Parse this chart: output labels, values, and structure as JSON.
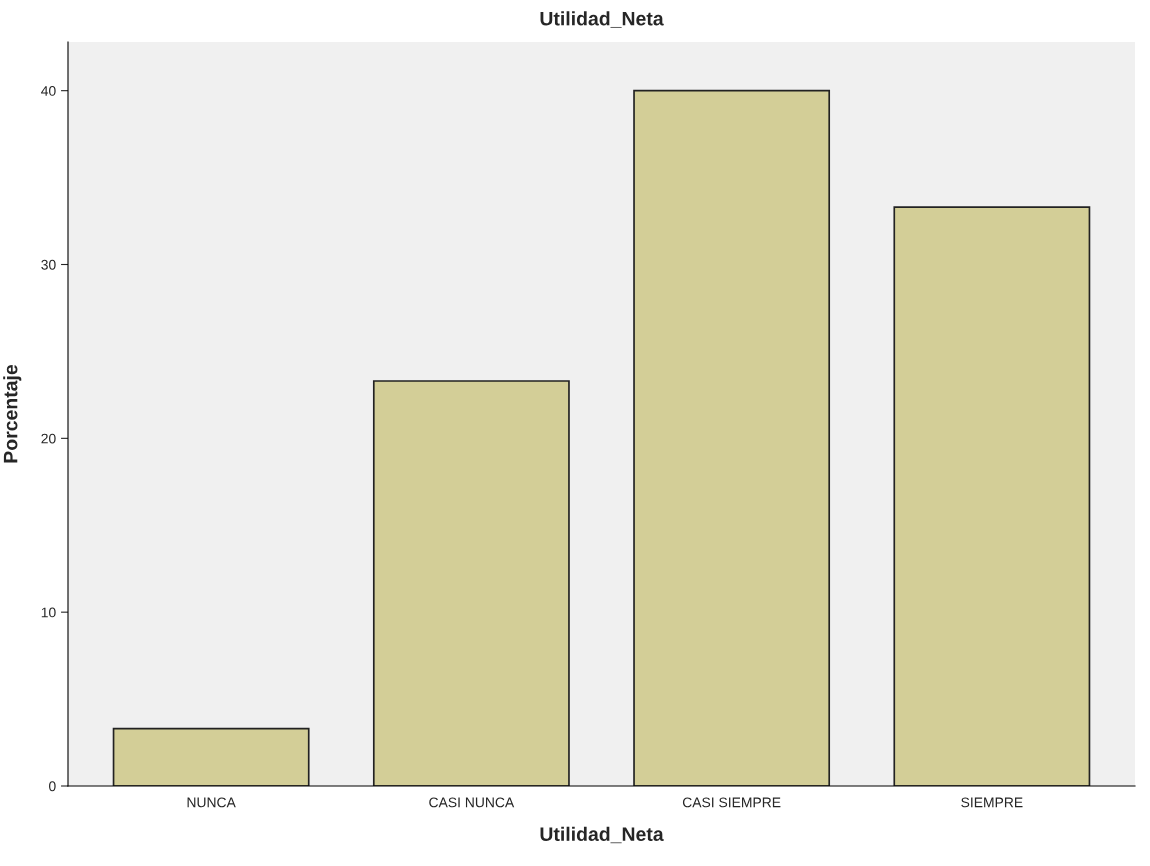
{
  "chart_data": {
    "type": "bar",
    "title": "Utilidad_Neta",
    "xlabel": "Utilidad_Neta",
    "ylabel": "Porcentaje",
    "categories": [
      "NUNCA",
      "CASI NUNCA",
      "CASI SIEMPRE",
      "SIEMPRE"
    ],
    "values": [
      3.3,
      23.3,
      40.0,
      33.3
    ],
    "color": "#d3ce97",
    "ylim": [
      0,
      42.8
    ],
    "yticks": [
      0,
      10,
      20,
      30,
      40
    ],
    "grid": false
  }
}
